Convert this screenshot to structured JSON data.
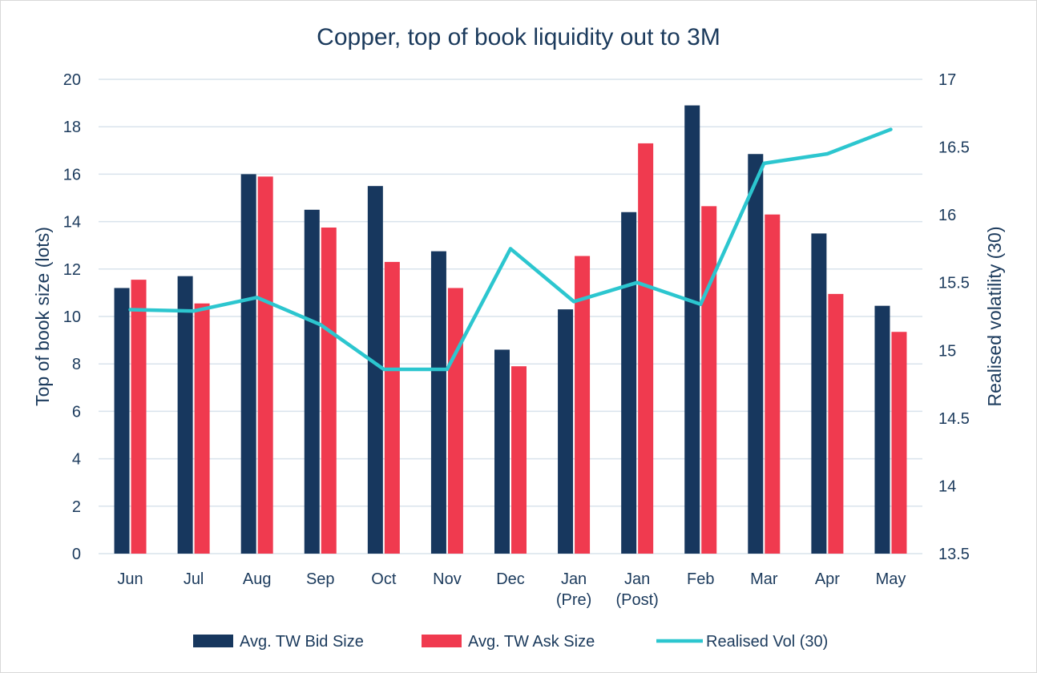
{
  "chart_data": {
    "type": "bar",
    "title": "Copper, top of book liquidity out to 3M",
    "categories": [
      [
        "Jun"
      ],
      [
        "Jul"
      ],
      [
        "Aug"
      ],
      [
        "Sep"
      ],
      [
        "Oct"
      ],
      [
        "Nov"
      ],
      [
        "Dec"
      ],
      [
        "Jan",
        "(Pre)"
      ],
      [
        "Jan",
        "(Post)"
      ],
      [
        "Feb"
      ],
      [
        "Mar"
      ],
      [
        "Apr"
      ],
      [
        "May"
      ]
    ],
    "ylabel": "Top of book size (lots)",
    "y2label": "Realised volatility (30)",
    "ylim": [
      0,
      20
    ],
    "y2lim": [
      13.5,
      17
    ],
    "yticks": [
      "0",
      "2",
      "4",
      "6",
      "8",
      "10",
      "12",
      "14",
      "16",
      "18",
      "20"
    ],
    "y2ticks": [
      "13.5",
      "14",
      "14.5",
      "15",
      "15.5",
      "16",
      "16.5",
      "17"
    ],
    "grid": true,
    "legend_position": "bottom",
    "series": [
      {
        "name": "Avg. TW Bid Size",
        "type": "bar",
        "axis": "left",
        "color": "#17375e",
        "values": [
          11.2,
          11.7,
          16.0,
          14.5,
          15.5,
          12.75,
          8.6,
          10.3,
          14.4,
          18.9,
          16.85,
          13.5,
          10.45
        ]
      },
      {
        "name": "Avg. TW Ask Size",
        "type": "bar",
        "axis": "left",
        "color": "#f03a4f",
        "values": [
          11.55,
          10.55,
          15.9,
          13.75,
          12.3,
          11.2,
          7.9,
          12.55,
          17.3,
          14.65,
          14.3,
          10.95,
          9.35
        ]
      },
      {
        "name": "Realised Vol (30)",
        "type": "line",
        "axis": "right",
        "color": "#2cc6cf",
        "values": [
          15.3,
          15.29,
          15.39,
          15.19,
          14.86,
          14.86,
          15.75,
          15.36,
          15.5,
          15.34,
          16.38,
          16.45,
          16.63
        ]
      }
    ]
  }
}
